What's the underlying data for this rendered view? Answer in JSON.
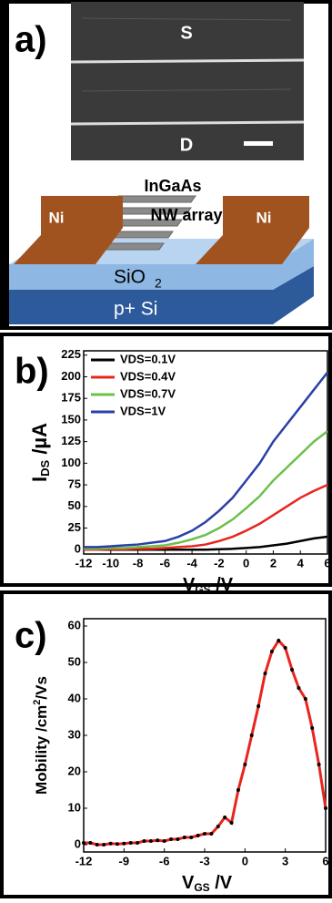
{
  "diagram": {
    "panel_label": "a)",
    "sem_top": "S",
    "sem_bottom": "D",
    "material": "InGaAs",
    "nw": "NW array",
    "ni_left": "Ni",
    "ni_right": "Ni",
    "oxide": "SiO",
    "oxide_sub": "2",
    "substrate": "p+ Si"
  },
  "chart_data": [
    {
      "type": "line",
      "panel_label": "b)",
      "ylabel": "I",
      "ylabel_sub": "DS",
      "ylabel_rest": " /µA",
      "xlabel": "V",
      "xlabel_sub": "GS",
      "xlabel_rest": " /V",
      "x": [
        -12,
        -11,
        -10,
        -9,
        -8,
        -7,
        -6,
        -5,
        -4,
        -3,
        -2,
        -1,
        0,
        1,
        2,
        3,
        4,
        5,
        6
      ],
      "series": [
        {
          "name": "VDS=0.1V",
          "color": "#000000",
          "values": [
            0,
            0,
            0,
            0,
            0,
            0,
            0,
            0,
            0,
            0,
            0.5,
            1,
            2,
            3,
            5,
            7,
            10,
            13,
            15
          ]
        },
        {
          "name": "VDS=0.4V",
          "color": "#e8251e",
          "values": [
            0,
            0,
            0.5,
            0.5,
            1,
            1,
            2,
            3,
            4,
            6,
            10,
            15,
            22,
            30,
            40,
            50,
            60,
            68,
            75
          ]
        },
        {
          "name": "VDS=0.7V",
          "color": "#6cc04a",
          "values": [
            1,
            1,
            2,
            2,
            3,
            4,
            5,
            8,
            12,
            17,
            25,
            35,
            48,
            62,
            80,
            95,
            110,
            125,
            137
          ]
        },
        {
          "name": "VDS=1V",
          "color": "#2b3fa8",
          "values": [
            3,
            3,
            4,
            5,
            6,
            8,
            10,
            15,
            22,
            32,
            45,
            60,
            80,
            100,
            125,
            145,
            165,
            185,
            205
          ]
        }
      ],
      "xlim": [
        -12,
        6
      ],
      "xticks": [
        -12,
        -10,
        -8,
        -6,
        -4,
        -2,
        0,
        2,
        4,
        6
      ],
      "ylim": [
        -5,
        230
      ],
      "yticks": [
        0,
        25,
        50,
        75,
        100,
        125,
        150,
        175,
        200,
        225
      ],
      "legend": "upper left"
    },
    {
      "type": "line",
      "panel_label": "c)",
      "ylabel": "Mobility /cm",
      "ylabel_sup": "2",
      "ylabel_rest": "/Vs",
      "xlabel": "V",
      "xlabel_sub": "GS",
      "xlabel_rest": " /V",
      "x": [
        -12,
        -11.5,
        -11,
        -10.5,
        -10,
        -9.5,
        -9,
        -8.5,
        -8,
        -7.5,
        -7,
        -6.5,
        -6,
        -5.5,
        -5,
        -4.5,
        -4,
        -3.5,
        -3,
        -2.5,
        -2,
        -1.5,
        -1,
        -0.5,
        0,
        0.5,
        1,
        1.5,
        2,
        2.5,
        3,
        3.5,
        4,
        4.5,
        5,
        5.5,
        6
      ],
      "series": [
        {
          "color": "#e8251e",
          "marker_color": "#000000",
          "values": [
            0.5,
            0.5,
            0,
            0,
            0.3,
            0.2,
            0.3,
            0.5,
            0.5,
            1,
            1,
            1.2,
            1,
            1.5,
            1.5,
            2,
            2,
            2.5,
            3,
            3,
            5,
            7.5,
            6,
            15,
            22,
            30,
            38,
            47,
            53,
            56,
            54,
            48,
            43,
            40,
            32,
            22,
            10
          ]
        }
      ],
      "xlim": [
        -12,
        6
      ],
      "xticks": [
        -12,
        -9,
        -6,
        -3,
        0,
        3,
        6
      ],
      "ylim": [
        -2,
        62
      ],
      "yticks": [
        0,
        10,
        20,
        30,
        40,
        50,
        60
      ],
      "markers": true
    }
  ]
}
